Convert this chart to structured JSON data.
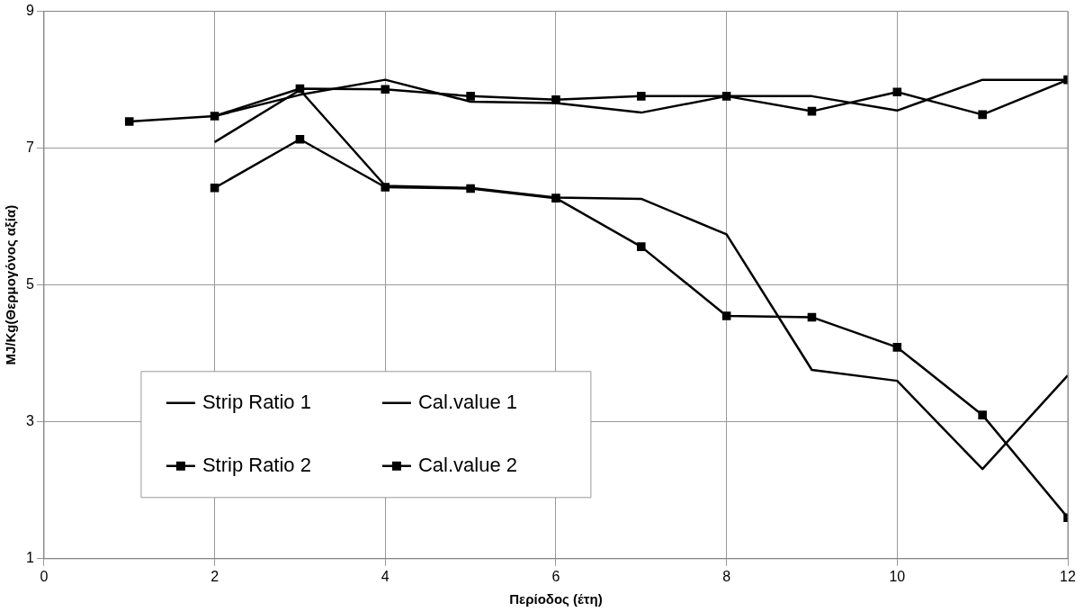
{
  "chart_data": {
    "type": "line",
    "xlabel": "Περίοδος (έτη)",
    "ylabel": "MJ/Kg(Θερμογόνος αξία)",
    "x": [
      1,
      2,
      3,
      4,
      5,
      6,
      7,
      8,
      9,
      10,
      11,
      12
    ],
    "xlim": [
      0,
      12
    ],
    "xticks": [
      0,
      2,
      4,
      6,
      8,
      10,
      12
    ],
    "ylim": [
      1,
      9
    ],
    "yticks": [
      1,
      3,
      5,
      7,
      9
    ],
    "grid": true,
    "legend": "bottom left",
    "line_style": "solid",
    "series": [
      {
        "name": "Strip Ratio 1",
        "color": "#000000",
        "marker": "none",
        "values": [
          null,
          7.09,
          7.85,
          6.45,
          6.42,
          6.28,
          6.26,
          5.74,
          3.76,
          3.6,
          2.31,
          3.68
        ]
      },
      {
        "name": "Cal.value 1",
        "color": "#000000",
        "marker": "none",
        "values": [
          null,
          7.47,
          7.78,
          8.0,
          7.68,
          7.66,
          7.52,
          7.76,
          7.76,
          7.55,
          8.0,
          8.0
        ]
      },
      {
        "name": "Strip Ratio 2",
        "color": "#000000",
        "marker": "square",
        "values": [
          null,
          6.42,
          7.13,
          6.43,
          6.41,
          6.27,
          5.56,
          4.55,
          4.53,
          4.09,
          3.1,
          1.6
        ]
      },
      {
        "name": "Cal.value 2",
        "color": "#000000",
        "marker": "square",
        "values": [
          7.39,
          7.47,
          7.87,
          7.86,
          7.76,
          7.71,
          7.76,
          7.76,
          7.54,
          7.82,
          7.49,
          8.0
        ]
      }
    ]
  }
}
